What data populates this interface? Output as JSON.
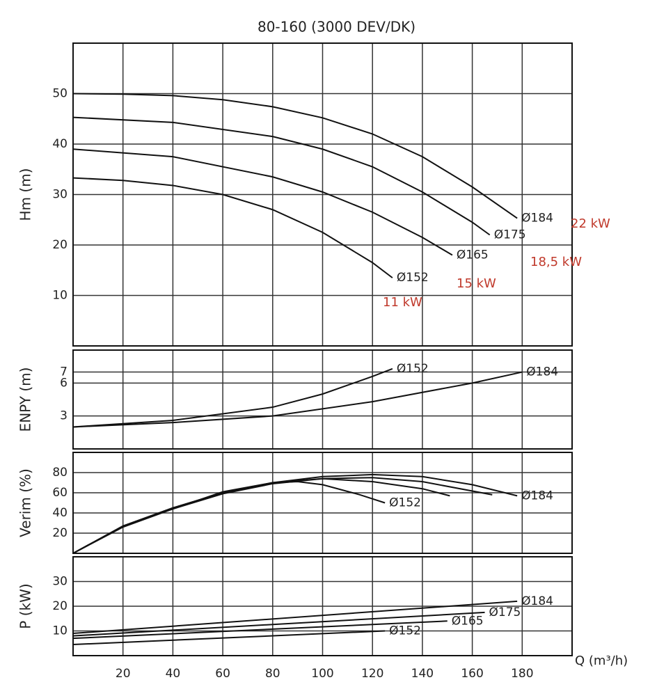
{
  "chart_data": [
    {
      "type": "line",
      "title": "80-160 (3000 DEV/DK)",
      "ylabel": "Hm (m)",
      "xlim": [
        0,
        200
      ],
      "ylim": [
        0,
        60
      ],
      "yticks": [
        10,
        20,
        30,
        40,
        50
      ],
      "grid": true,
      "series": [
        {
          "name": "Ø184",
          "color": "#111111",
          "x": [
            0,
            20,
            40,
            60,
            80,
            100,
            120,
            140,
            160,
            178
          ],
          "values": [
            50,
            49.9,
            49.6,
            48.8,
            47.4,
            45.2,
            42,
            37.5,
            31.5,
            25.3
          ]
        },
        {
          "name": "Ø175",
          "color": "#111111",
          "x": [
            0,
            40,
            80,
            100,
            120,
            140,
            160,
            167
          ],
          "values": [
            45.3,
            44.3,
            41.5,
            39,
            35.5,
            30.5,
            24.5,
            22
          ]
        },
        {
          "name": "Ø165",
          "color": "#111111",
          "x": [
            0,
            40,
            80,
            100,
            120,
            140,
            152
          ],
          "values": [
            39,
            37.5,
            33.5,
            30.5,
            26.5,
            21.5,
            18
          ]
        },
        {
          "name": "Ø152",
          "color": "#111111",
          "x": [
            0,
            20,
            40,
            60,
            80,
            100,
            120,
            128
          ],
          "values": [
            33.3,
            32.8,
            31.8,
            30,
            27,
            22.5,
            16.5,
            13.5
          ]
        }
      ],
      "annotations": [
        {
          "text": "22 kW",
          "color": "#c0392b"
        },
        {
          "text": "18,5 kW",
          "color": "#c0392b"
        },
        {
          "text": "15 kW",
          "color": "#c0392b"
        },
        {
          "text": "11 kW",
          "color": "#c0392b"
        }
      ]
    },
    {
      "type": "line",
      "ylabel": "ENPY (m)",
      "xlim": [
        0,
        200
      ],
      "ylim": [
        0,
        9
      ],
      "yticks": [
        3,
        6,
        7
      ],
      "grid": true,
      "series": [
        {
          "name": "Ø152",
          "color": "#111111",
          "x": [
            0,
            40,
            80,
            100,
            120,
            128
          ],
          "values": [
            2,
            2.6,
            3.8,
            5,
            6.6,
            7.3
          ]
        },
        {
          "name": "Ø184",
          "color": "#111111",
          "x": [
            0,
            40,
            80,
            120,
            160,
            180
          ],
          "values": [
            2,
            2.4,
            3,
            4.3,
            6,
            7
          ]
        }
      ]
    },
    {
      "type": "line",
      "ylabel": "Verim (%)",
      "xlim": [
        0,
        200
      ],
      "ylim": [
        0,
        100
      ],
      "yticks": [
        20,
        40,
        60,
        80
      ],
      "grid": true,
      "series": [
        {
          "name": "Ø152",
          "color": "#111111",
          "x": [
            0,
            20,
            40,
            60,
            80,
            90,
            100,
            115,
            125
          ],
          "values": [
            0,
            27,
            45,
            60,
            70,
            71,
            68,
            58,
            50
          ]
        },
        {
          "color": "#111111",
          "x": [
            0,
            20,
            40,
            60,
            80,
            100,
            120,
            140,
            151
          ],
          "values": [
            0,
            27,
            44,
            61,
            70,
            74,
            71,
            64,
            57
          ]
        },
        {
          "color": "#111111",
          "x": [
            0,
            20,
            40,
            60,
            80,
            100,
            120,
            140,
            168
          ],
          "values": [
            0,
            26,
            44,
            59,
            69,
            74,
            75,
            71,
            58
          ]
        },
        {
          "name": "Ø184",
          "color": "#111111",
          "x": [
            0,
            20,
            40,
            60,
            80,
            100,
            120,
            140,
            160,
            178
          ],
          "values": [
            0,
            27,
            45,
            60,
            70,
            76,
            78,
            76,
            68,
            57
          ]
        }
      ]
    },
    {
      "type": "line",
      "ylabel": "P (kW)",
      "xlabel": "Q (m³/h)",
      "xlim": [
        0,
        200
      ],
      "ylim": [
        0,
        40
      ],
      "yticks": [
        10,
        20,
        30
      ],
      "xticks": [
        20,
        40,
        60,
        80,
        100,
        120,
        140,
        160,
        180
      ],
      "grid": true,
      "series": [
        {
          "name": "Ø184",
          "color": "#111111",
          "x": [
            0,
            178
          ],
          "values": [
            9,
            22
          ]
        },
        {
          "name": "Ø175",
          "color": "#111111",
          "x": [
            0,
            165
          ],
          "values": [
            8,
            17.5
          ]
        },
        {
          "name": "Ø165",
          "color": "#111111",
          "x": [
            0,
            150
          ],
          "values": [
            7,
            14
          ]
        },
        {
          "name": "Ø152",
          "color": "#111111",
          "x": [
            0,
            125
          ],
          "values": [
            4.5,
            10
          ]
        }
      ]
    }
  ]
}
